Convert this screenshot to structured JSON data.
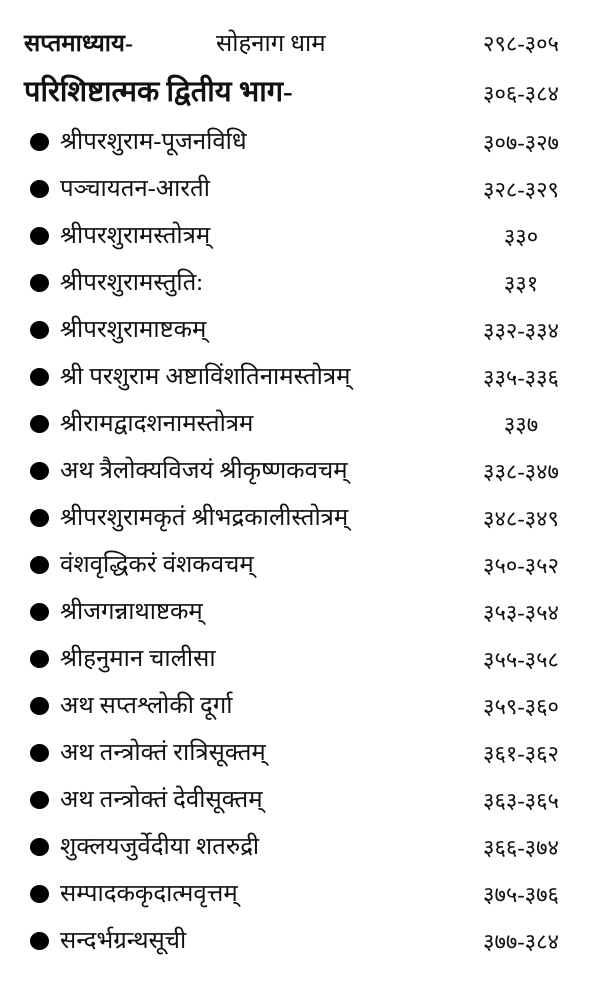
{
  "document": {
    "colors": {
      "text": "#111111",
      "background": "#ffffff",
      "bullet": "#000000"
    },
    "header": [
      {
        "title": "सप्तमाध्याय-",
        "subtitle": "सोहनाग धाम",
        "pages": "२९८-३०५"
      },
      {
        "title": "परिशिष्टात्मक द्वितीय भाग-",
        "pages": "३०६-३८४"
      }
    ],
    "entries": [
      {
        "label": "श्रीपरशुराम-पूजनविधि",
        "pages": "३०७-३२७"
      },
      {
        "label": "पञ्चायतन-आरती",
        "pages": "३२८-३२९"
      },
      {
        "label": "श्रीपरशुरामस्तोत्रम्",
        "pages": "३३०"
      },
      {
        "label": "श्रीपरशुरामस्तुति:",
        "pages": "३३१"
      },
      {
        "label": "श्रीपरशुरामाष्टकम्",
        "pages": "३३२-३३४"
      },
      {
        "label": "श्री परशुराम अष्टाविंशतिनामस्तोत्रम्",
        "pages": "३३५-३३६"
      },
      {
        "label": "श्रीरामद्वादशनामस्तोत्रम",
        "pages": "३३७"
      },
      {
        "label": "अथ त्रैलोक्यविजयं श्रीकृष्णकवचम्",
        "pages": "३३८-३४७"
      },
      {
        "label": "श्रीपरशुरामकृतं श्रीभद्रकालीस्तोत्रम्",
        "pages": "३४८-३४९"
      },
      {
        "label": "वंशवृद्धिकरं वंशकवचम्",
        "pages": "३५०-३५२"
      },
      {
        "label": "श्रीजगन्नाथाष्टकम्",
        "pages": "३५३-३५४"
      },
      {
        "label": "श्रीहनुमान चालीसा",
        "pages": "३५५-३५८"
      },
      {
        "label": "अथ सप्तश्लोकी दूर्गा",
        "pages": "३५९-३६०"
      },
      {
        "label": "अथ तन्त्रोक्तं रात्रिसूक्तम्",
        "pages": "३६१-३६२"
      },
      {
        "label": "अथ तन्त्रोक्तं देवीसूक्तम्",
        "pages": "३६३-३६५"
      },
      {
        "label": "शुक्लयजुर्वेदीया शतरुद्री",
        "pages": "३६६-३७४"
      },
      {
        "label": "सम्पादककृदात्मवृत्तम्",
        "pages": "३७५-३७६"
      },
      {
        "label": "सन्दर्भग्रन्थसूची",
        "pages": "३७७-३८४"
      }
    ]
  }
}
